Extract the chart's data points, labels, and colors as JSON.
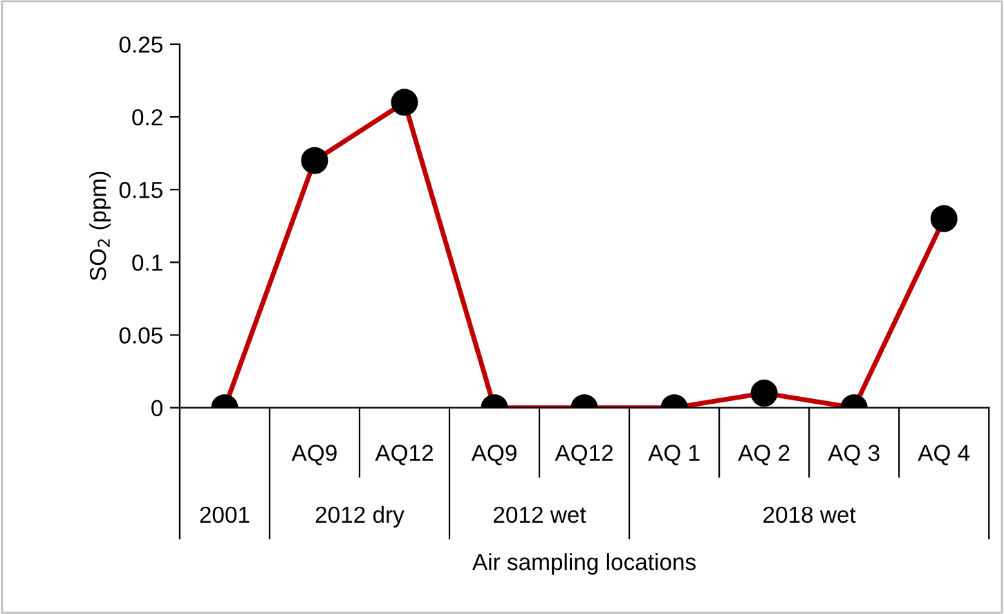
{
  "chart_data": {
    "type": "line",
    "ylabel": "SO$_{2}$ (ppm)",
    "xlabel": "Air sampling locations",
    "categories": [
      null,
      "AQ9",
      "AQ12",
      "AQ9",
      "AQ12",
      "AQ 1",
      "AQ 2",
      "AQ 3",
      "AQ 4"
    ],
    "series": [
      {
        "color": "#c00000",
        "colors": [
          "#000000",
          "#000000",
          "#000000",
          "#000000",
          "#000000",
          "#000000",
          "#000000",
          "#000000",
          "#000000"
        ],
        "values": [
          0,
          0.17,
          0.21,
          0,
          0,
          0,
          0.01,
          0,
          0.13
        ]
      }
    ],
    "annotations": [
      "2001",
      "2012 dry",
      "2012 wet",
      "2018 wet"
    ],
    "ylim": [
      0,
      0.25
    ],
    "yticks": [
      0,
      0.05,
      0.1,
      0.15,
      0.2,
      0.25
    ],
    "marker": "circle",
    "line_style": "solid",
    "grid": false,
    "legend": false
  }
}
